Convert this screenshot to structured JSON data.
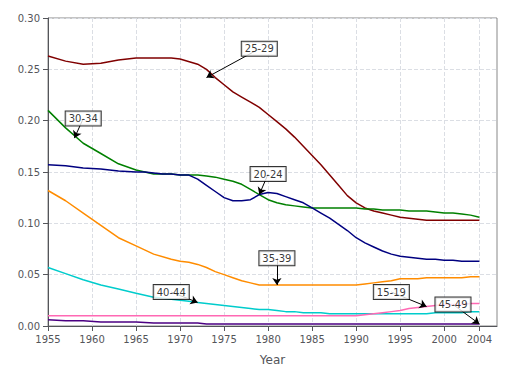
{
  "chart_data": {
    "type": "line",
    "xlabel": "Year",
    "xlim": [
      1955,
      2006
    ],
    "ylim": [
      0.0,
      0.3
    ],
    "xticks": [
      1955,
      1960,
      1965,
      1970,
      1975,
      1980,
      1985,
      1990,
      1995,
      2000,
      2004
    ],
    "yticks": [
      {
        "value": 0.0,
        "label": "0.00"
      },
      0.05,
      {
        "value": 0.1,
        "label": "0.10"
      },
      0.15,
      {
        "value": 0.2,
        "label": "0.20"
      },
      0.25,
      {
        "value": 0.3,
        "label": "0.30"
      }
    ],
    "grid": true,
    "series": [
      {
        "name": "25-29",
        "color": "#800000",
        "x": [
          1955,
          1957,
          1959,
          1961,
          1963,
          1965,
          1967,
          1969,
          1970,
          1972,
          1973,
          1974,
          1975,
          1976,
          1977,
          1978,
          1979,
          1980,
          1981,
          1982,
          1983,
          1984,
          1985,
          1986,
          1987,
          1988,
          1989,
          1990,
          1991,
          1992,
          1993,
          1994,
          1995,
          1996,
          1997,
          1998,
          1999,
          2000,
          2001,
          2002,
          2003,
          2004
        ],
        "values": [
          0.263,
          0.258,
          0.255,
          0.256,
          0.259,
          0.261,
          0.261,
          0.261,
          0.26,
          0.255,
          0.25,
          0.242,
          0.235,
          0.228,
          0.223,
          0.218,
          0.213,
          0.206,
          0.199,
          0.192,
          0.184,
          0.175,
          0.166,
          0.157,
          0.147,
          0.137,
          0.127,
          0.12,
          0.115,
          0.112,
          0.11,
          0.108,
          0.106,
          0.105,
          0.104,
          0.103,
          0.103,
          0.103,
          0.103,
          0.103,
          0.103,
          0.103
        ]
      },
      {
        "name": "30-34",
        "color": "#008000",
        "x": [
          1955,
          1957,
          1959,
          1961,
          1963,
          1965,
          1966,
          1967,
          1968,
          1969,
          1970,
          1971,
          1972,
          1973,
          1974,
          1975,
          1976,
          1977,
          1978,
          1979,
          1980,
          1981,
          1982,
          1983,
          1984,
          1985,
          1986,
          1987,
          1988,
          1989,
          1990,
          1991,
          1992,
          1993,
          1994,
          1995,
          1996,
          1997,
          1998,
          1999,
          2000,
          2001,
          2002,
          2003,
          2004
        ],
        "values": [
          0.21,
          0.193,
          0.178,
          0.168,
          0.158,
          0.152,
          0.15,
          0.148,
          0.148,
          0.148,
          0.147,
          0.147,
          0.147,
          0.146,
          0.145,
          0.143,
          0.141,
          0.138,
          0.133,
          0.128,
          0.123,
          0.12,
          0.118,
          0.117,
          0.116,
          0.115,
          0.115,
          0.115,
          0.115,
          0.115,
          0.115,
          0.114,
          0.114,
          0.113,
          0.113,
          0.113,
          0.112,
          0.112,
          0.112,
          0.111,
          0.11,
          0.11,
          0.109,
          0.108,
          0.106
        ]
      },
      {
        "name": "20-24",
        "color": "#000080",
        "x": [
          1955,
          1957,
          1959,
          1961,
          1963,
          1965,
          1966,
          1967,
          1968,
          1969,
          1970,
          1971,
          1972,
          1973,
          1974,
          1975,
          1976,
          1977,
          1978,
          1979,
          1980,
          1981,
          1982,
          1983,
          1984,
          1985,
          1986,
          1987,
          1988,
          1989,
          1990,
          1991,
          1992,
          1993,
          1994,
          1995,
          1996,
          1997,
          1998,
          1999,
          2000,
          2001,
          2002,
          2003,
          2004
        ],
        "values": [
          0.157,
          0.156,
          0.154,
          0.153,
          0.151,
          0.15,
          0.15,
          0.149,
          0.148,
          0.148,
          0.147,
          0.147,
          0.143,
          0.137,
          0.131,
          0.125,
          0.122,
          0.122,
          0.123,
          0.128,
          0.13,
          0.129,
          0.126,
          0.123,
          0.12,
          0.115,
          0.11,
          0.105,
          0.099,
          0.093,
          0.086,
          0.081,
          0.077,
          0.073,
          0.07,
          0.068,
          0.067,
          0.066,
          0.065,
          0.065,
          0.064,
          0.064,
          0.063,
          0.063,
          0.063
        ]
      },
      {
        "name": "35-39",
        "color": "#FF8C00",
        "x": [
          1955,
          1957,
          1959,
          1961,
          1963,
          1965,
          1967,
          1969,
          1970,
          1971,
          1972,
          1973,
          1974,
          1975,
          1976,
          1977,
          1978,
          1979,
          1980,
          1981,
          1982,
          1983,
          1984,
          1985,
          1986,
          1987,
          1988,
          1989,
          1990,
          1991,
          1992,
          1993,
          1994,
          1995,
          1996,
          1997,
          1998,
          1999,
          2000,
          2001,
          2002,
          2003,
          2004
        ],
        "values": [
          0.132,
          0.122,
          0.11,
          0.098,
          0.086,
          0.078,
          0.07,
          0.065,
          0.063,
          0.062,
          0.06,
          0.057,
          0.053,
          0.05,
          0.047,
          0.044,
          0.042,
          0.04,
          0.04,
          0.04,
          0.04,
          0.04,
          0.04,
          0.04,
          0.04,
          0.04,
          0.04,
          0.04,
          0.04,
          0.041,
          0.042,
          0.043,
          0.044,
          0.046,
          0.046,
          0.046,
          0.047,
          0.047,
          0.047,
          0.047,
          0.047,
          0.048,
          0.048
        ]
      },
      {
        "name": "40-44",
        "color": "#00CCCC",
        "x": [
          1955,
          1957,
          1959,
          1961,
          1963,
          1965,
          1967,
          1969,
          1970,
          1971,
          1972,
          1973,
          1974,
          1975,
          1976,
          1977,
          1978,
          1979,
          1980,
          1981,
          1982,
          1983,
          1984,
          1985,
          1986,
          1987,
          1988,
          1989,
          1990,
          1991,
          1992,
          1993,
          1994,
          1995,
          1996,
          1997,
          1998,
          1999,
          2000,
          2001,
          2002,
          2003,
          2004
        ],
        "values": [
          0.057,
          0.051,
          0.045,
          0.04,
          0.036,
          0.032,
          0.028,
          0.026,
          0.025,
          0.024,
          0.023,
          0.022,
          0.021,
          0.02,
          0.019,
          0.018,
          0.017,
          0.016,
          0.016,
          0.015,
          0.014,
          0.014,
          0.013,
          0.013,
          0.013,
          0.012,
          0.012,
          0.012,
          0.012,
          0.012,
          0.012,
          0.012,
          0.012,
          0.012,
          0.012,
          0.012,
          0.012,
          0.013,
          0.013,
          0.013,
          0.013,
          0.014,
          0.014
        ]
      },
      {
        "name": "15-19",
        "color": "#FF69B4",
        "x": [
          1955,
          1960,
          1965,
          1970,
          1975,
          1980,
          1985,
          1986,
          1987,
          1988,
          1989,
          1990,
          1991,
          1992,
          1993,
          1994,
          1995,
          1996,
          1997,
          1998,
          1999,
          2000,
          2001,
          2002,
          2003,
          2004
        ],
        "values": [
          0.01,
          0.01,
          0.01,
          0.01,
          0.01,
          0.01,
          0.01,
          0.01,
          0.01,
          0.01,
          0.01,
          0.01,
          0.011,
          0.012,
          0.013,
          0.014,
          0.015,
          0.017,
          0.018,
          0.019,
          0.02,
          0.021,
          0.021,
          0.021,
          0.022,
          0.022
        ]
      },
      {
        "name": "45-49",
        "color": "#4B0082",
        "x": [
          1955,
          1957,
          1959,
          1961,
          1963,
          1965,
          1967,
          1969,
          1970,
          1971,
          1972,
          1973,
          1974,
          1975,
          1980,
          1985,
          1990,
          1995,
          2000,
          2004
        ],
        "values": [
          0.006,
          0.005,
          0.005,
          0.004,
          0.004,
          0.004,
          0.003,
          0.003,
          0.003,
          0.003,
          0.003,
          0.002,
          0.002,
          0.002,
          0.002,
          0.002,
          0.002,
          0.002,
          0.002,
          0.002
        ]
      }
    ],
    "annotations": [
      {
        "text": "25-29",
        "x": 1979,
        "y": 0.27,
        "ax": 1973,
        "ay": 0.242
      },
      {
        "text": "30-34",
        "x": 1959,
        "y": 0.202,
        "ax": 1958,
        "ay": 0.183
      },
      {
        "text": "20-24",
        "x": 1980,
        "y": 0.148,
        "ax": 1979,
        "ay": 0.128
      },
      {
        "text": "35-39",
        "x": 1981,
        "y": 0.066,
        "ax": 1981,
        "ay": 0.04
      },
      {
        "text": "40-44",
        "x": 1969,
        "y": 0.033,
        "ax": 1972,
        "ay": 0.023
      },
      {
        "text": "15-19",
        "x": 1994,
        "y": 0.033,
        "ax": 1998,
        "ay": 0.019
      },
      {
        "text": "45-49",
        "x": 2001,
        "y": 0.021,
        "ax": 2004,
        "ay": 0.002
      }
    ]
  }
}
